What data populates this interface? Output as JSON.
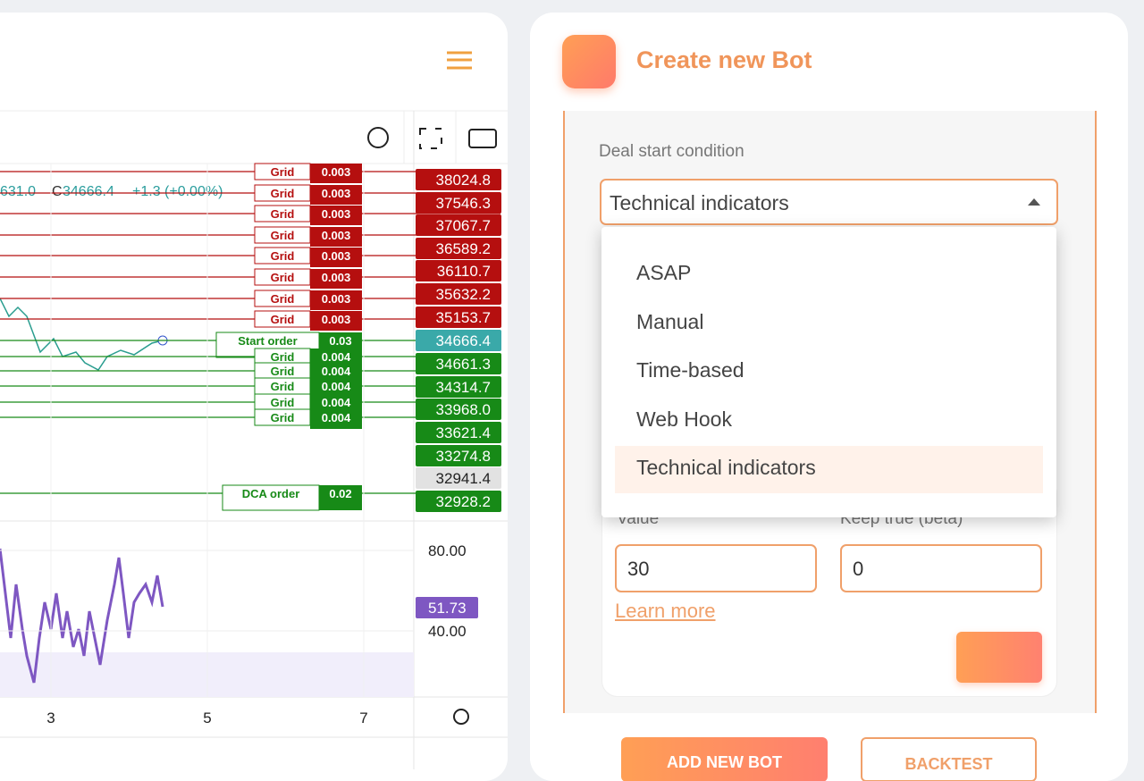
{
  "chart_panel": {
    "legend": {
      "open_fragment": "631.0",
      "close_label": "C",
      "close": "34666.4",
      "change": "+1.3 (+0.00%)"
    },
    "orders": [
      {
        "label": "Grid",
        "qty": "0.003"
      },
      {
        "label": "Grid",
        "qty": "0.003"
      },
      {
        "label": "Grid",
        "qty": "0.003"
      },
      {
        "label": "Grid",
        "qty": "0.003"
      },
      {
        "label": "Grid",
        "qty": "0.003"
      },
      {
        "label": "Grid",
        "qty": "0.003"
      },
      {
        "label": "Grid",
        "qty": "0.003"
      },
      {
        "label": "Grid",
        "qty": "0.003"
      },
      {
        "label": "Start order",
        "qty": "0.03"
      },
      {
        "label": "Grid",
        "qty": "0.004"
      },
      {
        "label": "Grid",
        "qty": "0.004"
      },
      {
        "label": "Grid",
        "qty": "0.004"
      },
      {
        "label": "Grid",
        "qty": "0.004"
      },
      {
        "label": "Grid",
        "qty": "0.004"
      },
      {
        "label": "DCA order",
        "qty": "0.02"
      }
    ],
    "price_scale": [
      "38024.8",
      "37546.3",
      "37067.7",
      "36589.2",
      "36110.7",
      "35632.2",
      "35153.7",
      "34666.4",
      "34661.3",
      "34314.7",
      "33968.0",
      "33621.4",
      "33274.8",
      "32941.4",
      "32928.2"
    ],
    "indicator_scale": [
      "80.00",
      "51.73",
      "40.00"
    ],
    "time_axis": [
      "3",
      "5",
      "7"
    ]
  },
  "bot_panel": {
    "title": "Create new Bot",
    "deal_start_label": "Deal start condition",
    "selected": "Technical indicators",
    "options": [
      "ASAP",
      "Manual",
      "Time-based",
      "Web Hook",
      "Technical indicators"
    ],
    "value_label": "Value",
    "keep_true_label": "Keep true (beta)",
    "value": "30",
    "keep_true": "0",
    "learn_more": "Learn more",
    "buttons": [
      "ADD NEW BOT",
      "BACKTEST"
    ]
  }
}
